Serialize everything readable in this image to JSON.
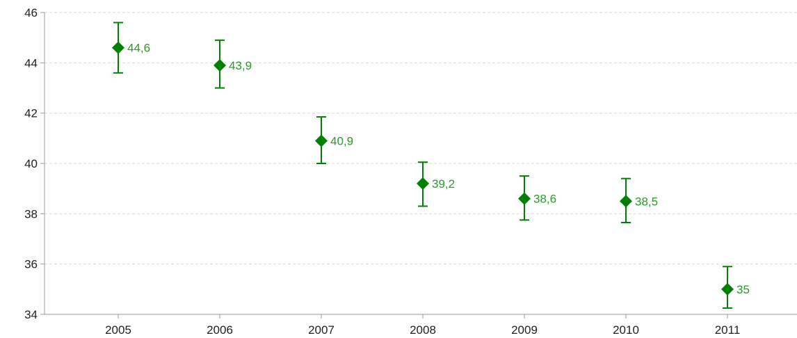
{
  "chart_data": {
    "type": "scatter",
    "title": "",
    "xlabel": "",
    "ylabel": "",
    "categories": [
      "2005",
      "2006",
      "2007",
      "2008",
      "2009",
      "2010",
      "2011"
    ],
    "values": [
      44.6,
      43.9,
      40.9,
      39.2,
      38.6,
      38.5,
      35
    ],
    "value_labels": [
      "44,6",
      "43,9",
      "40,9",
      "39,2",
      "38,6",
      "38,5",
      "35"
    ],
    "error_low": [
      43.6,
      43.0,
      40.0,
      38.3,
      37.75,
      37.65,
      34.25
    ],
    "error_high": [
      45.6,
      44.9,
      41.85,
      40.05,
      39.5,
      39.4,
      35.9
    ],
    "ylim": [
      34,
      46
    ],
    "yticks": [
      34,
      36,
      38,
      40,
      42,
      44,
      46
    ],
    "ytick_labels": [
      "34",
      "36",
      "38",
      "40",
      "42",
      "44",
      "46"
    ],
    "grid": "horizontal dashed",
    "marker": "diamond",
    "series_color": "#008000",
    "label_color": "#2a9a2a",
    "grid_color": "#d9d9d9",
    "axis_color": "#999999"
  }
}
